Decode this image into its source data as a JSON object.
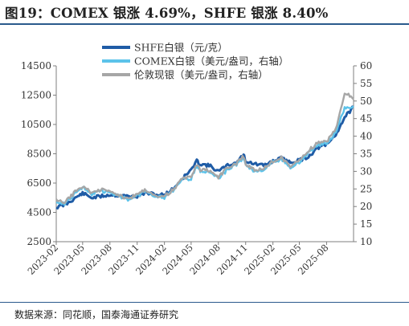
{
  "figure": {
    "title": "图19：COMEX 银涨 4.69%，SHFE 银涨 8.40%",
    "source": "数据来源：同花顺，国泰海通证券研究"
  },
  "chart_data": {
    "type": "line",
    "x_ticks": [
      "2023-02",
      "2023-05",
      "2023-08",
      "2023-11",
      "2024-02",
      "2024-05",
      "2024-08",
      "2024-11",
      "2025-02",
      "2025-05",
      "2025-08"
    ],
    "x_range": [
      "2023-02-01",
      "2025-10-31"
    ],
    "y_left": {
      "ticks": [
        2500,
        4500,
        6500,
        8500,
        10500,
        12500,
        14500
      ],
      "range": [
        2500,
        14500
      ]
    },
    "y_right": {
      "ticks": [
        10,
        15,
        20,
        25,
        30,
        35,
        40,
        45,
        50,
        55,
        60
      ],
      "range": [
        10,
        60
      ]
    },
    "grid": false,
    "legend_position": "top-center",
    "series": [
      {
        "name": "SHFE白银（元/克）",
        "axis": "left",
        "color": "#1f5ca6",
        "points": [
          [
            "2023-02-01",
            4850
          ],
          [
            "2023-03-01",
            5000
          ],
          [
            "2023-04-15",
            5600
          ],
          [
            "2023-05-01",
            5800
          ],
          [
            "2023-06-01",
            5500
          ],
          [
            "2023-07-01",
            5600
          ],
          [
            "2023-08-01",
            5700
          ],
          [
            "2023-09-01",
            5650
          ],
          [
            "2023-10-01",
            5600
          ],
          [
            "2023-11-01",
            5600
          ],
          [
            "2023-12-01",
            5850
          ],
          [
            "2024-01-01",
            5700
          ],
          [
            "2024-02-01",
            5700
          ],
          [
            "2024-03-01",
            6100
          ],
          [
            "2024-04-01",
            6800
          ],
          [
            "2024-05-01",
            7400
          ],
          [
            "2024-05-20",
            8000
          ],
          [
            "2024-06-01",
            7800
          ],
          [
            "2024-07-01",
            7700
          ],
          [
            "2024-08-01",
            7300
          ],
          [
            "2024-09-01",
            7700
          ],
          [
            "2024-10-01",
            7900
          ],
          [
            "2024-10-25",
            8450
          ],
          [
            "2024-11-01",
            8000
          ],
          [
            "2024-12-01",
            7800
          ],
          [
            "2025-01-01",
            7700
          ],
          [
            "2025-02-01",
            8000
          ],
          [
            "2025-03-01",
            8200
          ],
          [
            "2025-04-01",
            7900
          ],
          [
            "2025-05-01",
            8050
          ],
          [
            "2025-06-01",
            8300
          ],
          [
            "2025-07-01",
            8900
          ],
          [
            "2025-08-01",
            9100
          ],
          [
            "2025-09-01",
            9800
          ],
          [
            "2025-10-01",
            11000
          ],
          [
            "2025-10-31",
            11700
          ]
        ]
      },
      {
        "name": "COMEX白银（美元/盎司，右轴）",
        "axis": "right",
        "color": "#5cc3ea",
        "points": [
          [
            "2023-02-01",
            21.5
          ],
          [
            "2023-03-01",
            20.8
          ],
          [
            "2023-04-15",
            24.5
          ],
          [
            "2023-05-01",
            25.5
          ],
          [
            "2023-06-01",
            23.6
          ],
          [
            "2023-07-01",
            24.5
          ],
          [
            "2023-08-01",
            24.0
          ],
          [
            "2023-09-01",
            23.0
          ],
          [
            "2023-10-01",
            22.0
          ],
          [
            "2023-11-01",
            23.0
          ],
          [
            "2023-12-01",
            24.5
          ],
          [
            "2024-01-01",
            23.0
          ],
          [
            "2024-02-01",
            22.5
          ],
          [
            "2024-03-01",
            24.5
          ],
          [
            "2024-04-01",
            27.5
          ],
          [
            "2024-05-01",
            28.0
          ],
          [
            "2024-05-20",
            31.5
          ],
          [
            "2024-06-01",
            30.0
          ],
          [
            "2024-07-01",
            30.0
          ],
          [
            "2024-08-01",
            28.0
          ],
          [
            "2024-09-01",
            30.5
          ],
          [
            "2024-10-01",
            32.0
          ],
          [
            "2024-10-25",
            34.0
          ],
          [
            "2024-11-01",
            32.0
          ],
          [
            "2024-12-01",
            30.0
          ],
          [
            "2025-01-01",
            30.5
          ],
          [
            "2025-02-01",
            32.5
          ],
          [
            "2025-03-01",
            33.5
          ],
          [
            "2025-04-01",
            31.0
          ],
          [
            "2025-05-01",
            32.5
          ],
          [
            "2025-06-01",
            35.5
          ],
          [
            "2025-07-01",
            37.5
          ],
          [
            "2025-08-01",
            38.0
          ],
          [
            "2025-09-01",
            41.0
          ],
          [
            "2025-10-01",
            48.0
          ],
          [
            "2025-10-31",
            48.5
          ]
        ]
      },
      {
        "name": "伦敦现银（美元/盎司，右轴）",
        "axis": "right",
        "color": "#a6a6a6",
        "points": [
          [
            "2023-02-01",
            21.8
          ],
          [
            "2023-03-01",
            21.0
          ],
          [
            "2023-04-15",
            25.0
          ],
          [
            "2023-05-01",
            25.8
          ],
          [
            "2023-06-01",
            23.8
          ],
          [
            "2023-07-01",
            24.8
          ],
          [
            "2023-08-01",
            24.2
          ],
          [
            "2023-09-01",
            23.2
          ],
          [
            "2023-10-01",
            22.3
          ],
          [
            "2023-11-01",
            23.3
          ],
          [
            "2023-12-01",
            24.8
          ],
          [
            "2024-01-01",
            23.2
          ],
          [
            "2024-02-01",
            22.8
          ],
          [
            "2024-03-01",
            24.8
          ],
          [
            "2024-04-01",
            27.8
          ],
          [
            "2024-05-01",
            28.5
          ],
          [
            "2024-05-20",
            32.0
          ],
          [
            "2024-06-01",
            30.3
          ],
          [
            "2024-07-01",
            30.3
          ],
          [
            "2024-08-01",
            28.3
          ],
          [
            "2024-09-01",
            31.0
          ],
          [
            "2024-10-01",
            32.3
          ],
          [
            "2024-10-25",
            34.3
          ],
          [
            "2024-11-01",
            32.3
          ],
          [
            "2024-12-01",
            30.3
          ],
          [
            "2025-01-01",
            30.8
          ],
          [
            "2025-02-01",
            32.8
          ],
          [
            "2025-03-01",
            34.0
          ],
          [
            "2025-04-01",
            31.5
          ],
          [
            "2025-05-01",
            33.0
          ],
          [
            "2025-06-01",
            36.0
          ],
          [
            "2025-07-01",
            38.0
          ],
          [
            "2025-08-01",
            38.5
          ],
          [
            "2025-09-01",
            42.0
          ],
          [
            "2025-10-01",
            52.5
          ],
          [
            "2025-10-31",
            50.5
          ]
        ]
      }
    ]
  }
}
